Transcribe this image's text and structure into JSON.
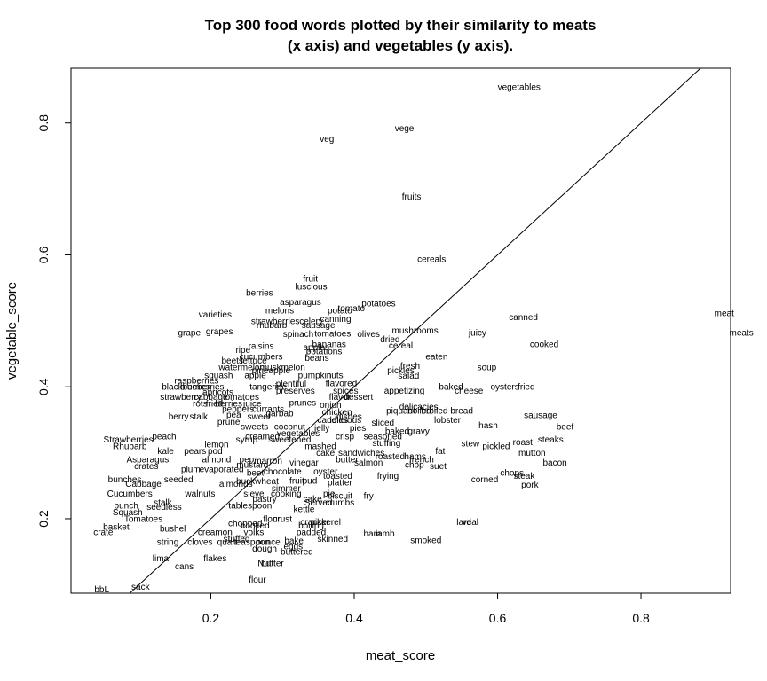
{
  "chart_data": {
    "type": "scatter",
    "title_line1": "Top 300 food words plotted by their similarity to meats",
    "title_line2": "(x axis) and vegetables (y axis).",
    "xlabel": "meat_score",
    "ylabel": "vegetable_score",
    "xlim": [
      0.005,
      0.925
    ],
    "ylim": [
      0.087,
      0.883
    ],
    "xticks": [
      0.2,
      0.4,
      0.6,
      0.8
    ],
    "yticks": [
      0.2,
      0.4,
      0.6,
      0.8
    ],
    "xtick_labels": [
      "0.2",
      "0.4",
      "0.6",
      "0.8"
    ],
    "ytick_labels": [
      "0.2",
      "0.4",
      "0.6",
      "0.8"
    ],
    "reference_line": {
      "slope": 1,
      "intercept": 0
    },
    "points": [
      {
        "label": "vegetables",
        "x": 0.63,
        "y": 0.855
      },
      {
        "label": "vege",
        "x": 0.47,
        "y": 0.792
      },
      {
        "label": "veg",
        "x": 0.362,
        "y": 0.776
      },
      {
        "label": "fruits",
        "x": 0.48,
        "y": 0.689
      },
      {
        "label": "cereals",
        "x": 0.508,
        "y": 0.594
      },
      {
        "label": "fruit",
        "x": 0.339,
        "y": 0.564
      },
      {
        "label": "luscious",
        "x": 0.34,
        "y": 0.552
      },
      {
        "label": "berries",
        "x": 0.268,
        "y": 0.543
      },
      {
        "label": "asparagus",
        "x": 0.325,
        "y": 0.529
      },
      {
        "label": "potatoes",
        "x": 0.434,
        "y": 0.527
      },
      {
        "label": "melons",
        "x": 0.296,
        "y": 0.516
      },
      {
        "label": "tomato",
        "x": 0.396,
        "y": 0.519
      },
      {
        "label": "potato",
        "x": 0.38,
        "y": 0.516
      },
      {
        "label": "varieties",
        "x": 0.206,
        "y": 0.51
      },
      {
        "label": "canning",
        "x": 0.374,
        "y": 0.503
      },
      {
        "label": "strawberries",
        "x": 0.29,
        "y": 0.5
      },
      {
        "label": "celery",
        "x": 0.34,
        "y": 0.5
      },
      {
        "label": "rhubarb",
        "x": 0.285,
        "y": 0.494
      },
      {
        "label": "sausage",
        "x": 0.35,
        "y": 0.494
      },
      {
        "label": "canned",
        "x": 0.636,
        "y": 0.506
      },
      {
        "label": "meat",
        "x": 0.916,
        "y": 0.512
      },
      {
        "label": "meats",
        "x": 0.94,
        "y": 0.482
      },
      {
        "label": "mushrooms",
        "x": 0.485,
        "y": 0.486
      },
      {
        "label": "grape",
        "x": 0.17,
        "y": 0.482
      },
      {
        "label": "grapes",
        "x": 0.212,
        "y": 0.484
      },
      {
        "label": "spinach",
        "x": 0.322,
        "y": 0.48
      },
      {
        "label": "tomatoes",
        "x": 0.37,
        "y": 0.481
      },
      {
        "label": "olives",
        "x": 0.42,
        "y": 0.48
      },
      {
        "label": "juicy",
        "x": 0.572,
        "y": 0.482
      },
      {
        "label": "dried",
        "x": 0.45,
        "y": 0.472
      },
      {
        "label": "bananas",
        "x": 0.365,
        "y": 0.465
      },
      {
        "label": "cooked",
        "x": 0.665,
        "y": 0.465
      },
      {
        "label": "apples",
        "x": 0.347,
        "y": 0.46
      },
      {
        "label": "raisins",
        "x": 0.27,
        "y": 0.462
      },
      {
        "label": "cereal",
        "x": 0.465,
        "y": 0.463
      },
      {
        "label": "ripe",
        "x": 0.245,
        "y": 0.456
      },
      {
        "label": "potations",
        "x": 0.358,
        "y": 0.454
      },
      {
        "label": "cucumbers",
        "x": 0.27,
        "y": 0.446
      },
      {
        "label": "eaten",
        "x": 0.515,
        "y": 0.446
      },
      {
        "label": "beans",
        "x": 0.348,
        "y": 0.444
      },
      {
        "label": "beets",
        "x": 0.23,
        "y": 0.44
      },
      {
        "label": "lettuce",
        "x": 0.26,
        "y": 0.44
      },
      {
        "label": "watermelon",
        "x": 0.243,
        "y": 0.43
      },
      {
        "label": "muskmelon",
        "x": 0.3,
        "y": 0.43
      },
      {
        "label": "fresh",
        "x": 0.478,
        "y": 0.432
      },
      {
        "label": "soup",
        "x": 0.585,
        "y": 0.43
      },
      {
        "label": "pineapple",
        "x": 0.284,
        "y": 0.425
      },
      {
        "label": "pickles",
        "x": 0.465,
        "y": 0.425
      },
      {
        "label": "squash",
        "x": 0.211,
        "y": 0.418
      },
      {
        "label": "apple",
        "x": 0.262,
        "y": 0.418
      },
      {
        "label": "pumpkin",
        "x": 0.345,
        "y": 0.418
      },
      {
        "label": "nuts",
        "x": 0.373,
        "y": 0.418
      },
      {
        "label": "salad",
        "x": 0.476,
        "y": 0.417
      },
      {
        "label": "raspberries",
        "x": 0.18,
        "y": 0.41
      },
      {
        "label": "flavored",
        "x": 0.382,
        "y": 0.406
      },
      {
        "label": "blackberries",
        "x": 0.165,
        "y": 0.4
      },
      {
        "label": "blueberries",
        "x": 0.188,
        "y": 0.4
      },
      {
        "label": "plentiful",
        "x": 0.312,
        "y": 0.405
      },
      {
        "label": "tangerine",
        "x": 0.28,
        "y": 0.4
      },
      {
        "label": "baked",
        "x": 0.535,
        "y": 0.4
      },
      {
        "label": "oysters",
        "x": 0.61,
        "y": 0.4
      },
      {
        "label": "fried",
        "x": 0.64,
        "y": 0.4
      },
      {
        "label": "apricots",
        "x": 0.21,
        "y": 0.392
      },
      {
        "label": "preserves",
        "x": 0.318,
        "y": 0.394
      },
      {
        "label": "spices",
        "x": 0.388,
        "y": 0.394
      },
      {
        "label": "appetizing",
        "x": 0.47,
        "y": 0.394
      },
      {
        "label": "cheese",
        "x": 0.56,
        "y": 0.394
      },
      {
        "label": "strawberry",
        "x": 0.158,
        "y": 0.385
      },
      {
        "label": "cabbage",
        "x": 0.2,
        "y": 0.385
      },
      {
        "label": "tomatoes",
        "x": 0.242,
        "y": 0.385
      },
      {
        "label": "flavor",
        "x": 0.38,
        "y": 0.385
      },
      {
        "label": "dessert",
        "x": 0.406,
        "y": 0.385
      },
      {
        "label": "rots",
        "x": 0.185,
        "y": 0.375
      },
      {
        "label": "fried",
        "x": 0.205,
        "y": 0.375
      },
      {
        "label": "berries",
        "x": 0.225,
        "y": 0.375
      },
      {
        "label": "juice",
        "x": 0.258,
        "y": 0.375
      },
      {
        "label": "prunes",
        "x": 0.328,
        "y": 0.376
      },
      {
        "label": "onion",
        "x": 0.367,
        "y": 0.373
      },
      {
        "label": "delicacies",
        "x": 0.49,
        "y": 0.37
      },
      {
        "label": "peppers",
        "x": 0.238,
        "y": 0.367
      },
      {
        "label": "currants",
        "x": 0.28,
        "y": 0.367
      },
      {
        "label": "piquant",
        "x": 0.465,
        "y": 0.364
      },
      {
        "label": "boiled",
        "x": 0.491,
        "y": 0.364
      },
      {
        "label": "broiled",
        "x": 0.512,
        "y": 0.364
      },
      {
        "label": "bread",
        "x": 0.55,
        "y": 0.364
      },
      {
        "label": "chicken",
        "x": 0.376,
        "y": 0.362
      },
      {
        "label": "pea",
        "x": 0.232,
        "y": 0.358
      },
      {
        "label": "garbab",
        "x": 0.296,
        "y": 0.36
      },
      {
        "label": "sweet",
        "x": 0.267,
        "y": 0.355
      },
      {
        "label": "dishes",
        "x": 0.393,
        "y": 0.355
      },
      {
        "label": "lobster",
        "x": 0.53,
        "y": 0.35
      },
      {
        "label": "sausage",
        "x": 0.66,
        "y": 0.357
      },
      {
        "label": "berry",
        "x": 0.155,
        "y": 0.355
      },
      {
        "label": "stalk",
        "x": 0.183,
        "y": 0.355
      },
      {
        "label": "prune",
        "x": 0.225,
        "y": 0.347
      },
      {
        "label": "candies",
        "x": 0.37,
        "y": 0.35
      },
      {
        "label": "delicious",
        "x": 0.386,
        "y": 0.35
      },
      {
        "label": "sliced",
        "x": 0.44,
        "y": 0.346
      },
      {
        "label": "hash",
        "x": 0.587,
        "y": 0.342
      },
      {
        "label": "beef",
        "x": 0.694,
        "y": 0.34
      },
      {
        "label": "sweets",
        "x": 0.261,
        "y": 0.34
      },
      {
        "label": "coconut",
        "x": 0.31,
        "y": 0.34
      },
      {
        "label": "jelly",
        "x": 0.355,
        "y": 0.338
      },
      {
        "label": "pies",
        "x": 0.405,
        "y": 0.338
      },
      {
        "label": "gravy",
        "x": 0.49,
        "y": 0.333
      },
      {
        "label": "vegetables",
        "x": 0.322,
        "y": 0.33
      },
      {
        "label": "baked",
        "x": 0.46,
        "y": 0.333
      },
      {
        "label": "creamed",
        "x": 0.272,
        "y": 0.325
      },
      {
        "label": "crisp",
        "x": 0.387,
        "y": 0.325
      },
      {
        "label": "seasoned",
        "x": 0.44,
        "y": 0.325
      },
      {
        "label": "steaks",
        "x": 0.674,
        "y": 0.32
      },
      {
        "label": "syrup",
        "x": 0.25,
        "y": 0.32
      },
      {
        "label": "sweetened",
        "x": 0.31,
        "y": 0.32
      },
      {
        "label": "roast",
        "x": 0.635,
        "y": 0.316
      },
      {
        "label": "Strawberries",
        "x": 0.085,
        "y": 0.32
      },
      {
        "label": "peach",
        "x": 0.135,
        "y": 0.325
      },
      {
        "label": "lemon",
        "x": 0.208,
        "y": 0.313
      },
      {
        "label": "stuffing",
        "x": 0.445,
        "y": 0.315
      },
      {
        "label": "stew",
        "x": 0.562,
        "y": 0.314
      },
      {
        "label": "pickled",
        "x": 0.598,
        "y": 0.31
      },
      {
        "label": "Rhubarb",
        "x": 0.087,
        "y": 0.31
      },
      {
        "label": "mashed",
        "x": 0.353,
        "y": 0.31
      },
      {
        "label": "kale",
        "x": 0.137,
        "y": 0.303
      },
      {
        "label": "pears",
        "x": 0.178,
        "y": 0.303
      },
      {
        "label": "pod",
        "x": 0.206,
        "y": 0.303
      },
      {
        "label": "fat",
        "x": 0.52,
        "y": 0.303
      },
      {
        "label": "mutton",
        "x": 0.648,
        "y": 0.3
      },
      {
        "label": "cake",
        "x": 0.36,
        "y": 0.3
      },
      {
        "label": "sandwiches",
        "x": 0.41,
        "y": 0.3
      },
      {
        "label": "roasted",
        "x": 0.45,
        "y": 0.295
      },
      {
        "label": "hams",
        "x": 0.485,
        "y": 0.295
      },
      {
        "label": "Asparagus",
        "x": 0.112,
        "y": 0.29
      },
      {
        "label": "almond",
        "x": 0.208,
        "y": 0.29
      },
      {
        "label": "pep",
        "x": 0.25,
        "y": 0.29
      },
      {
        "label": "butter",
        "x": 0.39,
        "y": 0.29
      },
      {
        "label": "salmon",
        "x": 0.42,
        "y": 0.285
      },
      {
        "label": "french",
        "x": 0.494,
        "y": 0.29
      },
      {
        "label": "mustard",
        "x": 0.258,
        "y": 0.282
      },
      {
        "label": "vinegar",
        "x": 0.33,
        "y": 0.285
      },
      {
        "label": "marron",
        "x": 0.28,
        "y": 0.288
      },
      {
        "label": "chop",
        "x": 0.484,
        "y": 0.282
      },
      {
        "label": "suet",
        "x": 0.517,
        "y": 0.28
      },
      {
        "label": "bacon",
        "x": 0.68,
        "y": 0.285
      },
      {
        "label": "crates",
        "x": 0.11,
        "y": 0.28
      },
      {
        "label": "plum",
        "x": 0.172,
        "y": 0.275
      },
      {
        "label": "evaporated",
        "x": 0.215,
        "y": 0.275
      },
      {
        "label": "beet",
        "x": 0.262,
        "y": 0.27
      },
      {
        "label": "chocolate",
        "x": 0.3,
        "y": 0.272
      },
      {
        "label": "oyster",
        "x": 0.36,
        "y": 0.272
      },
      {
        "label": "chops",
        "x": 0.62,
        "y": 0.27
      },
      {
        "label": "steak",
        "x": 0.637,
        "y": 0.265
      },
      {
        "label": "pork",
        "x": 0.645,
        "y": 0.252
      },
      {
        "label": "frying",
        "x": 0.447,
        "y": 0.265
      },
      {
        "label": "toasted",
        "x": 0.377,
        "y": 0.265
      },
      {
        "label": "corned",
        "x": 0.582,
        "y": 0.26
      },
      {
        "label": "platter",
        "x": 0.38,
        "y": 0.255
      },
      {
        "label": "bunches",
        "x": 0.08,
        "y": 0.26
      },
      {
        "label": "Cabbage",
        "x": 0.106,
        "y": 0.253
      },
      {
        "label": "seeded",
        "x": 0.155,
        "y": 0.26
      },
      {
        "label": "almonds",
        "x": 0.235,
        "y": 0.253
      },
      {
        "label": "buckwheat",
        "x": 0.265,
        "y": 0.257
      },
      {
        "label": "fruit",
        "x": 0.32,
        "y": 0.258
      },
      {
        "label": "pud",
        "x": 0.338,
        "y": 0.258
      },
      {
        "label": "Cucumbers",
        "x": 0.087,
        "y": 0.238
      },
      {
        "label": "walnuts",
        "x": 0.185,
        "y": 0.238
      },
      {
        "label": "simmer",
        "x": 0.305,
        "y": 0.246
      },
      {
        "label": "sieve",
        "x": 0.26,
        "y": 0.238
      },
      {
        "label": "cooking",
        "x": 0.305,
        "y": 0.238
      },
      {
        "label": "biscuit",
        "x": 0.38,
        "y": 0.235
      },
      {
        "label": "fry",
        "x": 0.42,
        "y": 0.235
      },
      {
        "label": "pastry",
        "x": 0.275,
        "y": 0.23
      },
      {
        "label": "cake",
        "x": 0.342,
        "y": 0.23
      },
      {
        "label": "pie",
        "x": 0.365,
        "y": 0.238
      },
      {
        "label": "Served",
        "x": 0.35,
        "y": 0.225
      },
      {
        "label": "crumbs",
        "x": 0.38,
        "y": 0.225
      },
      {
        "label": "bunch",
        "x": 0.082,
        "y": 0.22
      },
      {
        "label": "stalk",
        "x": 0.133,
        "y": 0.225
      },
      {
        "label": "seedless",
        "x": 0.135,
        "y": 0.218
      },
      {
        "label": "tablespoon",
        "x": 0.255,
        "y": 0.22
      },
      {
        "label": "kettle",
        "x": 0.33,
        "y": 0.215
      },
      {
        "label": "Squash",
        "x": 0.084,
        "y": 0.21
      },
      {
        "label": "Tomatoes",
        "x": 0.106,
        "y": 0.2
      },
      {
        "label": "flour",
        "x": 0.285,
        "y": 0.2
      },
      {
        "label": "crust",
        "x": 0.3,
        "y": 0.2
      },
      {
        "label": "cracker",
        "x": 0.345,
        "y": 0.195
      },
      {
        "label": "pickerel",
        "x": 0.36,
        "y": 0.195
      },
      {
        "label": "lard",
        "x": 0.553,
        "y": 0.195
      },
      {
        "label": "veal",
        "x": 0.562,
        "y": 0.195
      },
      {
        "label": "basket",
        "x": 0.068,
        "y": 0.188
      },
      {
        "label": "bushel",
        "x": 0.147,
        "y": 0.185
      },
      {
        "label": "chopped",
        "x": 0.248,
        "y": 0.193
      },
      {
        "label": "cooked",
        "x": 0.262,
        "y": 0.19
      },
      {
        "label": "boiling",
        "x": 0.34,
        "y": 0.19
      },
      {
        "label": "crate",
        "x": 0.05,
        "y": 0.18
      },
      {
        "label": "creamon",
        "x": 0.206,
        "y": 0.18
      },
      {
        "label": "yolks",
        "x": 0.26,
        "y": 0.18
      },
      {
        "label": "stuffed",
        "x": 0.236,
        "y": 0.17
      },
      {
        "label": "padded",
        "x": 0.34,
        "y": 0.18
      },
      {
        "label": "ham",
        "x": 0.425,
        "y": 0.178
      },
      {
        "label": "lamb",
        "x": 0.443,
        "y": 0.178
      },
      {
        "label": "skinned",
        "x": 0.37,
        "y": 0.17
      },
      {
        "label": "string",
        "x": 0.14,
        "y": 0.165
      },
      {
        "label": "cloves",
        "x": 0.185,
        "y": 0.165
      },
      {
        "label": "quart",
        "x": 0.223,
        "y": 0.165
      },
      {
        "label": "teaspoon",
        "x": 0.257,
        "y": 0.165
      },
      {
        "label": "ounce",
        "x": 0.28,
        "y": 0.165
      },
      {
        "label": "bake",
        "x": 0.316,
        "y": 0.167
      },
      {
        "label": "smoked",
        "x": 0.5,
        "y": 0.168
      },
      {
        "label": "dough",
        "x": 0.275,
        "y": 0.155
      },
      {
        "label": "eggs",
        "x": 0.315,
        "y": 0.158
      },
      {
        "label": "buttered",
        "x": 0.32,
        "y": 0.15
      },
      {
        "label": "lima",
        "x": 0.13,
        "y": 0.14
      },
      {
        "label": "flakes",
        "x": 0.206,
        "y": 0.14
      },
      {
        "label": "Nut",
        "x": 0.275,
        "y": 0.133
      },
      {
        "label": "butter",
        "x": 0.286,
        "y": 0.133
      },
      {
        "label": "cans",
        "x": 0.163,
        "y": 0.128
      },
      {
        "label": "flour",
        "x": 0.265,
        "y": 0.108
      },
      {
        "label": "bbL",
        "x": 0.048,
        "y": 0.093
      },
      {
        "label": "sack",
        "x": 0.102,
        "y": 0.097
      }
    ]
  }
}
